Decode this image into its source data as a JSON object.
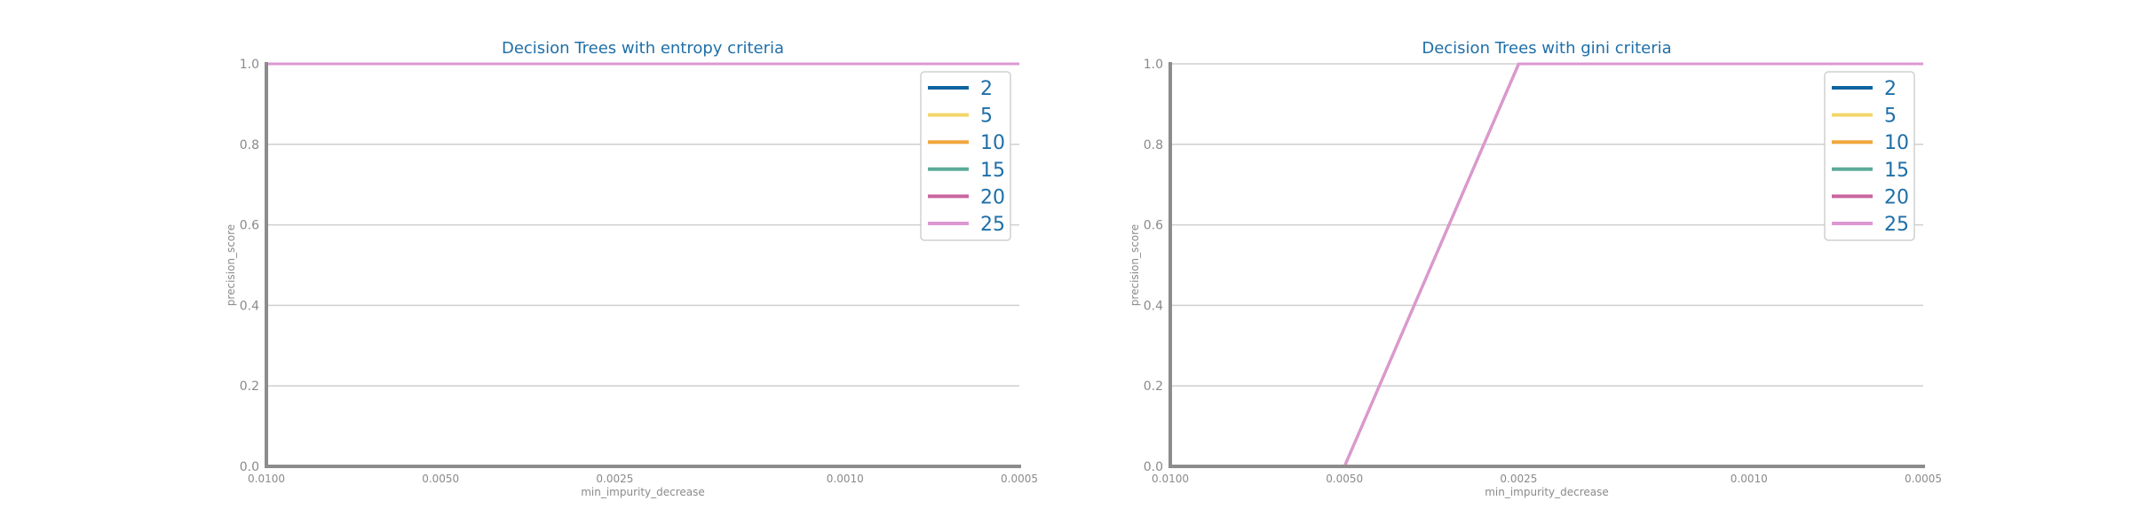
{
  "chart_data": [
    {
      "type": "line",
      "title": "Decision Trees with entropy criteria",
      "xlabel": "min_impurity_decrease",
      "ylabel": "precision_score",
      "x": [
        0.01,
        0.005,
        0.0025,
        0.001,
        0.0005
      ],
      "x_tick_labels": [
        "0.0100",
        "0.0050",
        "0.0025",
        "0.0010",
        "0.0005"
      ],
      "y_ticks": [
        0.0,
        0.2,
        0.4,
        0.6,
        0.8,
        1.0
      ],
      "y_tick_labels": [
        "0.0",
        "0.2",
        "0.4",
        "0.6",
        "0.8",
        "1.0"
      ],
      "ylim": [
        0,
        1
      ],
      "x_axis": "reversed",
      "grid": "horizontal",
      "legend_position": "top-right",
      "series": [
        {
          "name": "2",
          "color": "#0e64a0",
          "values": [
            1,
            1,
            1,
            1,
            1
          ]
        },
        {
          "name": "5",
          "color": "#f2d66b",
          "values": [
            1,
            1,
            1,
            1,
            1
          ]
        },
        {
          "name": "10",
          "color": "#f0a63c",
          "values": [
            1,
            1,
            1,
            1,
            1
          ]
        },
        {
          "name": "15",
          "color": "#5aaa98",
          "values": [
            1,
            1,
            1,
            1,
            1
          ]
        },
        {
          "name": "20",
          "color": "#c9649f",
          "values": [
            1,
            1,
            1,
            1,
            1
          ]
        },
        {
          "name": "25",
          "color": "#dd98d2",
          "values": [
            1,
            1,
            1,
            1,
            1
          ]
        }
      ]
    },
    {
      "type": "line",
      "title": "Decision Trees with gini criteria",
      "xlabel": "min_impurity_decrease",
      "ylabel": "precision_score",
      "x": [
        0.01,
        0.005,
        0.0025,
        0.001,
        0.0005
      ],
      "x_tick_labels": [
        "0.0100",
        "0.0050",
        "0.0025",
        "0.0010",
        "0.0005"
      ],
      "y_ticks": [
        0.0,
        0.2,
        0.4,
        0.6,
        0.8,
        1.0
      ],
      "y_tick_labels": [
        "0.0",
        "0.2",
        "0.4",
        "0.6",
        "0.8",
        "1.0"
      ],
      "ylim": [
        0,
        1
      ],
      "x_axis": "reversed",
      "grid": "horizontal",
      "legend_position": "top-right",
      "series": [
        {
          "name": "2",
          "color": "#0e64a0",
          "values": [
            0,
            0,
            1,
            1,
            1
          ]
        },
        {
          "name": "5",
          "color": "#f2d66b",
          "values": [
            0,
            0,
            1,
            1,
            1
          ]
        },
        {
          "name": "10",
          "color": "#f0a63c",
          "values": [
            0,
            0,
            1,
            1,
            1
          ]
        },
        {
          "name": "15",
          "color": "#5aaa98",
          "values": [
            0,
            0,
            1,
            1,
            1
          ]
        },
        {
          "name": "20",
          "color": "#c9649f",
          "values": [
            0,
            0,
            1,
            1,
            1
          ]
        },
        {
          "name": "25",
          "color": "#dd98d2",
          "values": [
            0,
            0,
            1,
            1,
            1
          ]
        }
      ]
    }
  ]
}
